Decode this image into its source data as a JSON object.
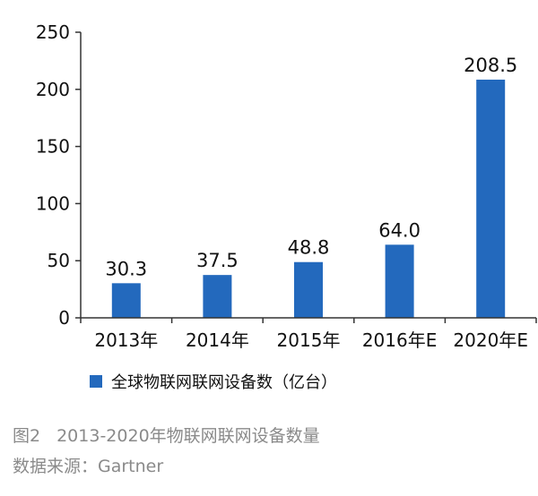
{
  "chart_data": {
    "type": "bar",
    "categories": [
      "2013年",
      "2014年",
      "2015年",
      "2016年E",
      "2020年E"
    ],
    "series": [
      {
        "name": "全球物联网联网设备数（亿台）",
        "values": [
          30.3,
          37.5,
          48.8,
          64.0,
          208.5
        ]
      }
    ],
    "data_labels": [
      "30.3",
      "37.5",
      "48.8",
      "64.0",
      "208.5"
    ],
    "y_ticks": [
      0,
      50,
      100,
      150,
      200,
      250
    ],
    "ylim": [
      0,
      250
    ],
    "grid": false,
    "legend_position": "bottom-left",
    "bar_color": "#2369bd"
  },
  "caption": {
    "figure_no": "图2",
    "title": "2013-2020年物联网联网设备数量",
    "source": "数据来源：Gartner"
  }
}
